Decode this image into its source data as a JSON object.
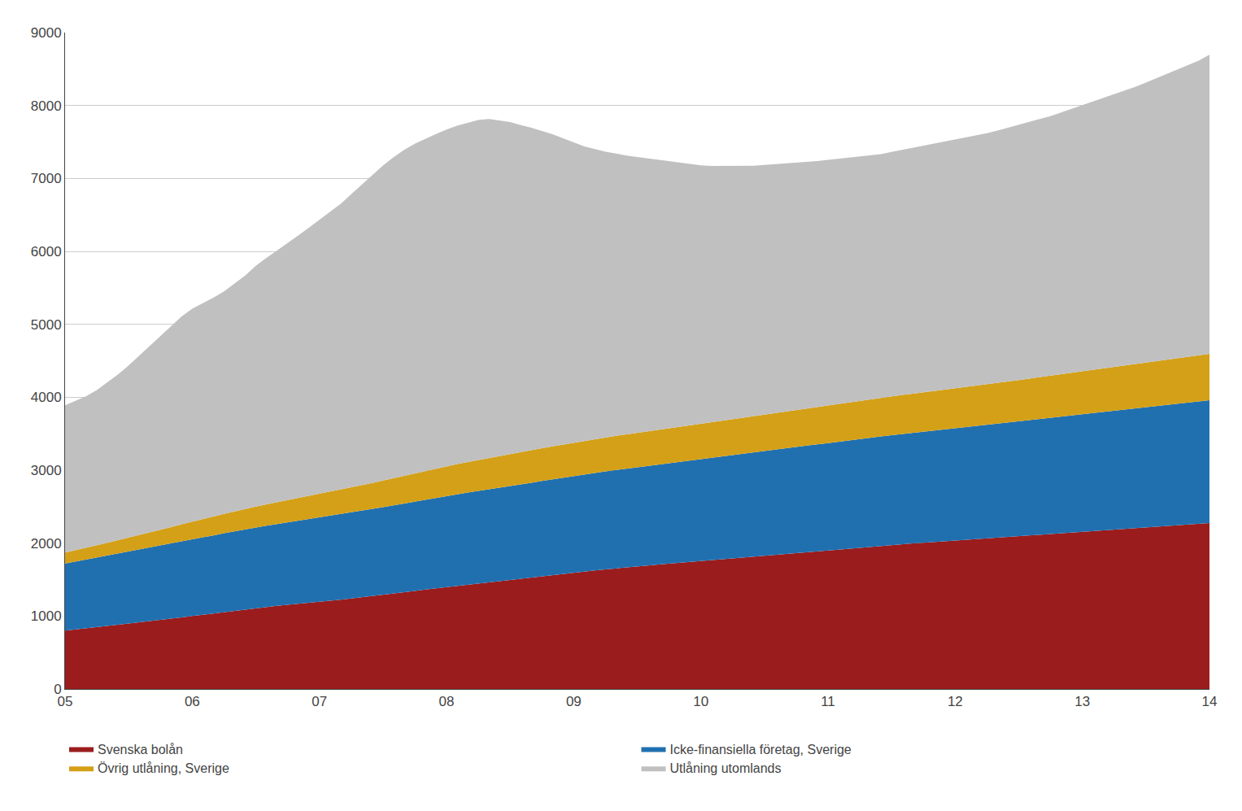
{
  "chart_data": {
    "type": "area",
    "stacked": true,
    "grid": true,
    "legend": "bottom",
    "background_color": "#FFFFFF",
    "grid_color": "#CCCCCC",
    "categories": [
      "05",
      null,
      null,
      null,
      null,
      null,
      null,
      null,
      null,
      null,
      null,
      null,
      "06",
      null,
      null,
      null,
      null,
      null,
      null,
      null,
      null,
      null,
      null,
      null,
      "07",
      null,
      null,
      null,
      null,
      null,
      null,
      null,
      null,
      null,
      null,
      null,
      "08",
      null,
      null,
      null,
      null,
      null,
      null,
      null,
      null,
      null,
      null,
      null,
      "09",
      null,
      null,
      null,
      null,
      null,
      null,
      null,
      null,
      null,
      null,
      null,
      "10",
      null,
      null,
      null,
      null,
      null,
      null,
      null,
      null,
      null,
      null,
      null,
      "11",
      null,
      null,
      null,
      null,
      null,
      null,
      null,
      null,
      null,
      null,
      null,
      "12",
      null,
      null,
      null,
      null,
      null,
      null,
      null,
      null,
      null,
      null,
      null,
      "13",
      null,
      null,
      null,
      null,
      null,
      null,
      null,
      null,
      null,
      null,
      null,
      "14"
    ],
    "ylim": [
      0,
      9000
    ],
    "yticks": [
      0,
      1000,
      2000,
      3000,
      4000,
      5000,
      6000,
      7000,
      8000,
      9000
    ],
    "series": [
      {
        "name": "Svenska bolån",
        "color": "#9B1C1C",
        "values": [
          800,
          815,
          830,
          848,
          865,
          882,
          898,
          915,
          930,
          948,
          965,
          982,
          1000,
          1018,
          1036,
          1055,
          1073,
          1091,
          1110,
          1125,
          1140,
          1155,
          1168,
          1180,
          1195,
          1210,
          1225,
          1242,
          1258,
          1275,
          1292,
          1310,
          1328,
          1345,
          1362,
          1380,
          1395,
          1412,
          1428,
          1445,
          1460,
          1478,
          1495,
          1512,
          1528,
          1545,
          1562,
          1578,
          1595,
          1610,
          1625,
          1640,
          1655,
          1668,
          1680,
          1693,
          1706,
          1718,
          1730,
          1742,
          1755,
          1768,
          1780,
          1792,
          1805,
          1818,
          1830,
          1842,
          1855,
          1867,
          1880,
          1892,
          1905,
          1918,
          1930,
          1942,
          1954,
          1964,
          1975,
          1985,
          1995,
          2005,
          2015,
          2025,
          2035,
          2045,
          2055,
          2065,
          2075,
          2085,
          2095,
          2105,
          2115,
          2125,
          2135,
          2145,
          2155,
          2165,
          2175,
          2185,
          2195,
          2205,
          2215,
          2225,
          2235,
          2245,
          2255,
          2265,
          2275
        ]
      },
      {
        "name": "Icke-finansiella företag, Sverige",
        "color": "#2070B0",
        "values": [
          920,
          932,
          944,
          956,
          968,
          980,
          990,
          1000,
          1010,
          1020,
          1030,
          1040,
          1050,
          1060,
          1070,
          1080,
          1090,
          1098,
          1106,
          1114,
          1122,
          1130,
          1138,
          1145,
          1152,
          1160,
          1168,
          1176,
          1184,
          1192,
          1200,
          1208,
          1216,
          1224,
          1232,
          1240,
          1248,
          1256,
          1264,
          1270,
          1276,
          1282,
          1288,
          1294,
          1300,
          1306,
          1312,
          1318,
          1324,
          1330,
          1336,
          1342,
          1348,
          1354,
          1360,
          1366,
          1372,
          1378,
          1384,
          1390,
          1396,
          1402,
          1408,
          1414,
          1420,
          1426,
          1432,
          1438,
          1444,
          1450,
          1456,
          1462,
          1468,
          1474,
          1480,
          1486,
          1492,
          1498,
          1504,
          1510,
          1516,
          1522,
          1528,
          1534,
          1540,
          1546,
          1552,
          1558,
          1564,
          1570,
          1576,
          1582,
          1588,
          1594,
          1600,
          1606,
          1612,
          1618,
          1624,
          1630,
          1636,
          1642,
          1648,
          1654,
          1660,
          1666,
          1672,
          1678,
          1684
        ]
      },
      {
        "name": "Övrig utlåning, Sverige",
        "color": "#D4A017",
        "values": [
          150,
          155,
          160,
          165,
          172,
          180,
          188,
          196,
          205,
          215,
          225,
          235,
          245,
          252,
          258,
          265,
          272,
          278,
          285,
          292,
          298,
          305,
          312,
          318,
          325,
          332,
          338,
          345,
          352,
          358,
          365,
          372,
          378,
          385,
          392,
          400,
          408,
          415,
          420,
          425,
          430,
          435,
          440,
          445,
          448,
          450,
          452,
          455,
          458,
          460,
          462,
          465,
          468,
          470,
          473,
          476,
          478,
          480,
          483,
          485,
          488,
          490,
          493,
          495,
          498,
          500,
          503,
          505,
          508,
          510,
          513,
          515,
          518,
          520,
          523,
          525,
          528,
          530,
          533,
          536,
          538,
          540,
          543,
          545,
          548,
          550,
          553,
          556,
          558,
          562,
          565,
          568,
          572,
          576,
          580,
          584,
          588,
          592,
          596,
          600,
          604,
          608,
          612,
          616,
          620,
          624,
          628,
          632,
          636
        ]
      },
      {
        "name": "Utlåning utomlands",
        "color": "#C0C0C0",
        "values": [
          2020,
          2050,
          2080,
          2130,
          2200,
          2270,
          2360,
          2460,
          2560,
          2660,
          2760,
          2850,
          2920,
          2960,
          3000,
          3050,
          3120,
          3200,
          3300,
          3380,
          3450,
          3520,
          3600,
          3680,
          3760,
          3840,
          3920,
          4020,
          4120,
          4220,
          4320,
          4400,
          4470,
          4520,
          4560,
          4590,
          4620,
          4640,
          4650,
          4660,
          4650,
          4600,
          4550,
          4480,
          4420,
          4350,
          4280,
          4200,
          4120,
          4040,
          3980,
          3920,
          3870,
          3820,
          3780,
          3740,
          3700,
          3660,
          3620,
          3580,
          3540,
          3510,
          3490,
          3470,
          3450,
          3430,
          3420,
          3410,
          3400,
          3390,
          3380,
          3370,
          3365,
          3360,
          3355,
          3350,
          3345,
          3340,
          3350,
          3360,
          3370,
          3380,
          3390,
          3400,
          3410,
          3420,
          3430,
          3440,
          3460,
          3480,
          3500,
          3520,
          3540,
          3560,
          3590,
          3620,
          3650,
          3680,
          3710,
          3740,
          3770,
          3800,
          3840,
          3880,
          3920,
          3960,
          4000,
          4040,
          4100
        ]
      }
    ]
  }
}
